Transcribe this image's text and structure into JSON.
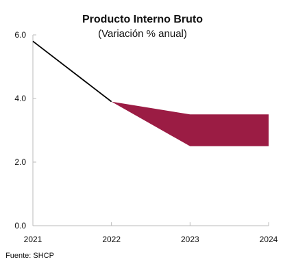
{
  "chart_data": {
    "type": "line",
    "title": "Producto Interno Bruto",
    "subtitle": "(Variación % anual)",
    "x": [
      "2021",
      "2022",
      "2023",
      "2024"
    ],
    "series": [
      {
        "values": [
          5.8,
          3.9,
          null,
          null
        ]
      }
    ],
    "band": {
      "x": [
        "2022",
        "2023",
        "2024"
      ],
      "upper": [
        3.9,
        3.5,
        3.5
      ],
      "lower": [
        3.9,
        2.5,
        2.5
      ]
    },
    "y_ticks": [
      "0.0",
      "2.0",
      "4.0",
      "6.0"
    ],
    "ylim": [
      0,
      6
    ],
    "grid": false,
    "source": "Fuente: SHCP",
    "colors": {
      "line": "#000000",
      "band": "#9b1c44",
      "axis": "#bbbbbb"
    }
  }
}
